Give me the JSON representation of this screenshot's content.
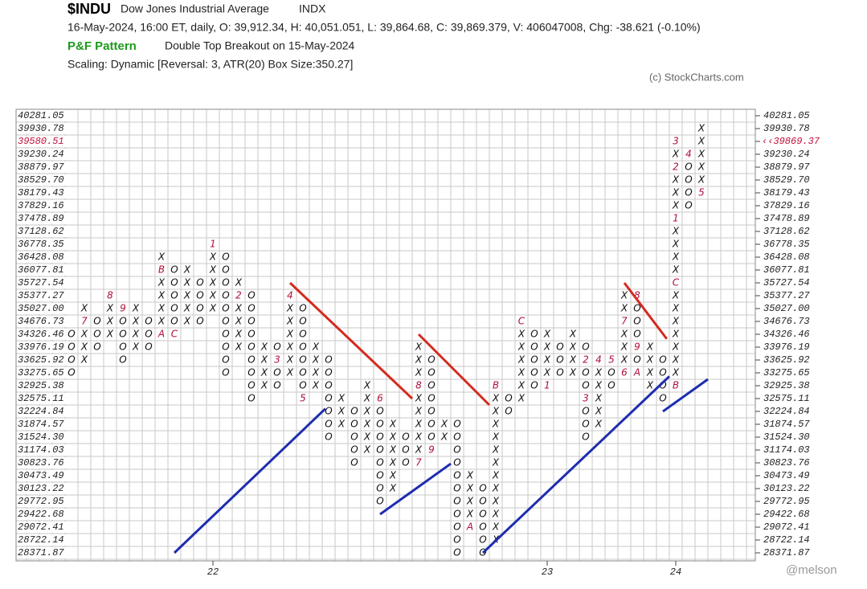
{
  "chart_data": {
    "type": "pnf",
    "title": "$INDU",
    "subtitle": "Dow Jones Industrial Average",
    "exchange": "INDX",
    "quote": "16-May-2024, 16:00 ET, daily, O: 39,912.34, H: 40,051.051, L: 39,864.68, C: 39,869.379, V: 406047008, Chg: -38.621 (-0.10%)",
    "pattern_label": "P&F Pattern",
    "pattern": "Double Top Breakout on 15-May-2024",
    "scaling": "Scaling: Dynamic [Reversal: 3, ATR(20) Box Size:350.27]",
    "credit": "(c) StockCharts.com",
    "watermark": "@melson",
    "ylim": [
      28371.87,
      40281.05
    ],
    "yticks": [
      40281.05,
      39930.78,
      39580.51,
      39230.24,
      38879.97,
      {
        "value": 38529.7,
        "label": "38529.70"
      },
      38179.43,
      37829.16,
      37478.89,
      37128.62,
      36778.35,
      36428.08,
      36077.81,
      35727.54,
      35377.27,
      {
        "value": 35027,
        "label": "35027.00"
      },
      34676.73,
      34326.46,
      33976.19,
      33625.92,
      33275.65,
      32925.38,
      32575.11,
      32224.84,
      31874.57,
      {
        "value": 31524.3,
        "label": "31524.30"
      },
      31174.03,
      30823.76,
      30473.49,
      30123.22,
      29772.95,
      29422.68,
      29072.41,
      28722.14,
      28371.87
    ],
    "last_price": {
      "value": 39869.37,
      "label": "‹‹39869.37"
    },
    "highlight_color": "#c0103a",
    "xticks": [
      {
        "value": 11,
        "label": "22"
      },
      {
        "value": 37,
        "label": "23"
      },
      {
        "value": 47,
        "label": "24"
      }
    ],
    "columns": [
      {
        "symbol": "O",
        "low": 33275.65,
        "high": 34326.46,
        "markers": []
      },
      {
        "symbol": "X",
        "low": 33625.92,
        "high": 35027,
        "markers": [
          {
            "value": 34676.73,
            "label": "7"
          }
        ]
      },
      {
        "symbol": "O",
        "low": 33976.19,
        "high": 34676.73,
        "markers": []
      },
      {
        "symbol": "X",
        "low": 34326.46,
        "high": 35377.27,
        "markers": [
          {
            "value": 35377.27,
            "label": "8"
          }
        ]
      },
      {
        "symbol": "O",
        "low": 33625.92,
        "high": 35027,
        "markers": [
          {
            "value": 35027,
            "label": "9"
          }
        ]
      },
      {
        "symbol": "X",
        "low": 33976.19,
        "high": 35027,
        "markers": []
      },
      {
        "symbol": "O",
        "low": 33976.19,
        "high": 34676.73,
        "markers": []
      },
      {
        "symbol": "X",
        "low": 34326.46,
        "high": 36428.08,
        "markers": [
          {
            "value": 34326.46,
            "label": "A"
          },
          {
            "value": 36077.81,
            "label": "B"
          }
        ]
      },
      {
        "symbol": "O",
        "low": 34326.46,
        "high": 36077.81,
        "markers": [
          {
            "value": 34326.46,
            "label": "C"
          }
        ]
      },
      {
        "symbol": "X",
        "low": 34676.73,
        "high": 36077.81,
        "markers": []
      },
      {
        "symbol": "O",
        "low": 34676.73,
        "high": 35727.54,
        "markers": []
      },
      {
        "symbol": "X",
        "low": 35027,
        "high": 36778.35,
        "markers": [
          {
            "value": 36778.35,
            "label": "1"
          }
        ]
      },
      {
        "symbol": "O",
        "low": 33275.65,
        "high": 36428.08,
        "markers": []
      },
      {
        "symbol": "X",
        "low": 33976.19,
        "high": 35727.54,
        "markers": [
          {
            "value": 35377.27,
            "label": "2"
          }
        ]
      },
      {
        "symbol": "O",
        "low": 32575.11,
        "high": 35377.27,
        "markers": []
      },
      {
        "symbol": "X",
        "low": 32925.38,
        "high": 33976.19,
        "markers": []
      },
      {
        "symbol": "O",
        "low": 32925.38,
        "high": 33976.19,
        "markers": [
          {
            "value": 33625.92,
            "label": "3"
          }
        ]
      },
      {
        "symbol": "X",
        "low": 33275.65,
        "high": 35377.27,
        "markers": [
          {
            "value": 35377.27,
            "label": "4"
          }
        ]
      },
      {
        "symbol": "O",
        "low": 32575.11,
        "high": 35027,
        "markers": [
          {
            "value": 32575.11,
            "label": "5"
          }
        ]
      },
      {
        "symbol": "X",
        "low": 32925.38,
        "high": 33976.19,
        "markers": []
      },
      {
        "symbol": "O",
        "low": 31524.3,
        "high": 33625.92,
        "markers": []
      },
      {
        "symbol": "X",
        "low": 31874.57,
        "high": 32575.11,
        "markers": []
      },
      {
        "symbol": "O",
        "low": 30823.76,
        "high": 32224.84,
        "markers": []
      },
      {
        "symbol": "X",
        "low": 31174.03,
        "high": 32925.38,
        "markers": []
      },
      {
        "symbol": "O",
        "low": 29772.95,
        "high": 32575.11,
        "markers": [
          {
            "value": 32575.11,
            "label": "6"
          }
        ]
      },
      {
        "symbol": "X",
        "low": 30123.22,
        "high": 31874.57,
        "markers": []
      },
      {
        "symbol": "O",
        "low": 30823.76,
        "high": 31524.3,
        "markers": []
      },
      {
        "symbol": "X",
        "low": 30823.76,
        "high": 33976.19,
        "markers": [
          {
            "value": 30823.76,
            "label": "7"
          },
          {
            "value": 32925.38,
            "label": "8"
          }
        ]
      },
      {
        "symbol": "O",
        "low": 31174.03,
        "high": 33625.92,
        "markers": [
          {
            "value": 31174.03,
            "label": "9"
          }
        ]
      },
      {
        "symbol": "X",
        "low": 31524.3,
        "high": 31874.57,
        "markers": []
      },
      {
        "symbol": "O",
        "low": 28371.87,
        "high": 31874.57,
        "markers": []
      },
      {
        "symbol": "X",
        "low": 29072.41,
        "high": 30473.49,
        "markers": [
          {
            "value": 29072.41,
            "label": "A"
          }
        ]
      },
      {
        "symbol": "O",
        "low": 28371.87,
        "high": 30123.22,
        "markers": []
      },
      {
        "symbol": "X",
        "low": 28722.14,
        "high": 32925.38,
        "markers": [
          {
            "value": 32925.38,
            "label": "B"
          }
        ]
      },
      {
        "symbol": "O",
        "low": 32224.84,
        "high": 32575.11,
        "markers": []
      },
      {
        "symbol": "X",
        "low": 32575.11,
        "high": 34676.73,
        "markers": [
          {
            "value": 34676.73,
            "label": "C"
          }
        ]
      },
      {
        "symbol": "O",
        "low": 32925.38,
        "high": 34326.46,
        "markers": []
      },
      {
        "symbol": "X",
        "low": 32925.38,
        "high": 34326.46,
        "markers": [
          {
            "value": 32925.38,
            "label": "1"
          }
        ]
      },
      {
        "symbol": "O",
        "low": 33275.65,
        "high": 33976.19,
        "markers": []
      },
      {
        "symbol": "X",
        "low": 33275.65,
        "high": 34326.46,
        "markers": []
      },
      {
        "symbol": "O",
        "low": 31524.3,
        "high": 33976.19,
        "markers": [
          {
            "value": 33625.92,
            "label": "2"
          },
          {
            "value": 32575.11,
            "label": "3"
          }
        ]
      },
      {
        "symbol": "X",
        "low": 31874.57,
        "high": 33625.92,
        "markers": [
          {
            "value": 33625.92,
            "label": "4"
          }
        ]
      },
      {
        "symbol": "O",
        "low": 32925.38,
        "high": 33625.92,
        "markers": [
          {
            "value": 33625.92,
            "label": "5"
          }
        ]
      },
      {
        "symbol": "X",
        "low": 33275.65,
        "high": 35377.27,
        "markers": [
          {
            "value": 33275.65,
            "label": "6"
          },
          {
            "value": 34676.73,
            "label": "7"
          }
        ]
      },
      {
        "symbol": "O",
        "low": 33275.65,
        "high": 35377.27,
        "markers": [
          {
            "value": 35377.27,
            "label": "8"
          },
          {
            "value": 33976.19,
            "label": "9"
          },
          {
            "value": 33275.65,
            "label": "A"
          }
        ]
      },
      {
        "symbol": "X",
        "low": 32925.38,
        "high": 33976.19,
        "markers": []
      },
      {
        "symbol": "O",
        "low": 32575.11,
        "high": 33625.92,
        "markers": []
      },
      {
        "symbol": "X",
        "low": 32925.38,
        "high": 39580.51,
        "markers": [
          {
            "value": 32925.38,
            "label": "B"
          },
          {
            "value": 35727.54,
            "label": "C"
          },
          {
            "value": 37478.89,
            "label": "1"
          },
          {
            "value": 38879.97,
            "label": "2"
          },
          {
            "value": 39580.51,
            "label": "3"
          }
        ]
      },
      {
        "symbol": "O",
        "low": 37829.16,
        "high": 39230.24,
        "markers": [
          {
            "value": 39230.24,
            "label": "4"
          }
        ]
      },
      {
        "symbol": "X",
        "low": 38179.43,
        "high": 39930.78,
        "markers": [
          {
            "value": 38179.43,
            "label": "5"
          }
        ]
      }
    ],
    "trendlines": [
      {
        "color": "#d42a1f",
        "x": [
          17,
          26.5
        ],
        "y": [
          35727.54,
          32575.11
        ]
      },
      {
        "color": "#d42a1f",
        "x": [
          27,
          32.5
        ],
        "y": [
          34326.46,
          32400
        ]
      },
      {
        "color": "#d42a1f",
        "x": [
          43,
          46.3
        ],
        "y": [
          35727.54,
          34200
        ]
      },
      {
        "color": "#1f2db0",
        "x": [
          8,
          19.75
        ],
        "y": [
          28371.87,
          32300
        ]
      },
      {
        "color": "#1f2db0",
        "x": [
          24,
          29.5
        ],
        "y": [
          29422.68,
          30800
        ]
      },
      {
        "color": "#1f2db0",
        "x": [
          32,
          46.5
        ],
        "y": [
          28371.87,
          33180
        ]
      },
      {
        "color": "#1f2db0",
        "x": [
          46,
          49.5
        ],
        "y": [
          32224.84,
          33100
        ]
      }
    ]
  }
}
